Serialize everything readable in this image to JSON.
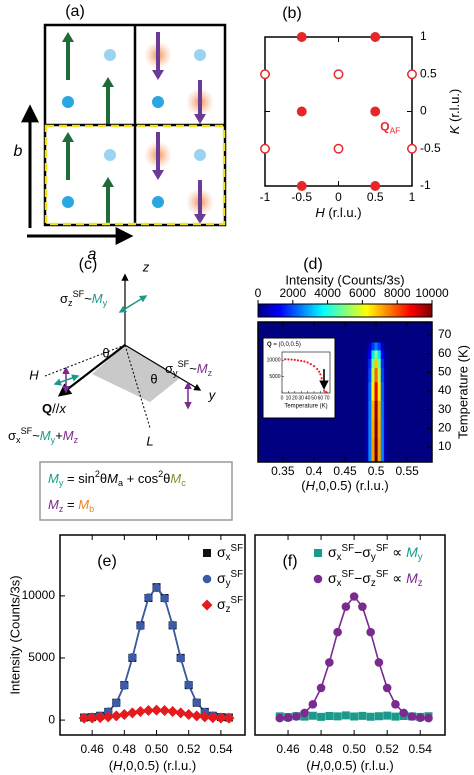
{
  "diagram_a": {
    "title": "(a)",
    "vertical_axis": "b",
    "horizontal_axis": "a"
  },
  "diagram_c": {
    "title": "(c)",
    "z": "z",
    "y": "y",
    "H": "H",
    "L": "L",
    "theta": [
      "θ",
      "θ"
    ],
    "Q": [
      {
        "b": "Q"
      },
      {
        "t": "//"
      },
      {
        "i": "x"
      }
    ],
    "sigma_z": [
      {
        "t": "σ"
      },
      {
        "sub": "z"
      },
      {
        "sup": "SF"
      },
      {
        "t": "~"
      },
      {
        "i": "M",
        "color": "#1a9a8a"
      },
      {
        "sub": "y",
        "color": "#1a9a8a"
      }
    ],
    "sigma_y": [
      {
        "t": "σ"
      },
      {
        "sub": "y"
      },
      {
        "sup": "SF"
      },
      {
        "t": "~"
      },
      {
        "i": "M",
        "color": "#7b2a8e"
      },
      {
        "sub": "z",
        "color": "#7b2a8e"
      }
    ],
    "sigma_x": [
      {
        "t": "σ"
      },
      {
        "sub": "x"
      },
      {
        "sup": "SF"
      },
      {
        "t": "~"
      },
      {
        "i": "M",
        "color": "#1a9a8a"
      },
      {
        "sub": "y",
        "color": "#1a9a8a"
      },
      {
        "t": "+"
      },
      {
        "i": "M",
        "color": "#7b2a8e"
      },
      {
        "sub": "z",
        "color": "#7b2a8e"
      }
    ],
    "formula_y": [
      {
        "i": "M",
        "color": "#1a9a8a"
      },
      {
        "sub": "y",
        "color": "#1a9a8a"
      },
      {
        "t": " = sin"
      },
      {
        "sup": "2"
      },
      {
        "t": "θ"
      },
      {
        "i": "M"
      },
      {
        "sub": "a"
      },
      {
        "t": " + cos"
      },
      {
        "sup": "2"
      },
      {
        "t": "θ"
      },
      {
        "i": "M",
        "color": "#8a8a2a"
      },
      {
        "sub": "c",
        "color": "#8a8a2a"
      }
    ],
    "formula_z": [
      {
        "i": "M",
        "color": "#7b2a8e"
      },
      {
        "sub": "z",
        "color": "#7b2a8e"
      },
      {
        "t": " = "
      },
      {
        "i": "M",
        "color": "#e8862a"
      },
      {
        "sub": "b",
        "color": "#e8862a"
      }
    ]
  },
  "chart_data": [
    {
      "type": "scatter",
      "title": "(b)",
      "xlabel": [
        {
          "i": "H"
        },
        {
          "t": " (r.l.u.)"
        }
      ],
      "ylabel": [
        {
          "i": "K"
        },
        {
          "t": " (r.l.u.)"
        }
      ],
      "xlim": [
        -1,
        1
      ],
      "ylim": [
        -1,
        1
      ],
      "xticks": [
        -1,
        -0.5,
        0,
        0.5,
        1
      ],
      "yticks": [
        -1,
        -0.5,
        0,
        0.5,
        1
      ],
      "annotation": [
        {
          "b": "Q",
          "color": "#e8262a"
        },
        {
          "sub": "AF",
          "color": "#e8262a"
        }
      ],
      "series": [
        {
          "color": "#e8262a",
          "fill": "filled",
          "x": [
            -0.5,
            0.5,
            -0.5,
            0.5,
            -0.5,
            0.5
          ],
          "values": [
            1,
            1,
            0,
            0,
            -1,
            -1
          ]
        },
        {
          "color": "#e8262a",
          "fill": "open",
          "x": [
            -1,
            0,
            1,
            -1,
            0,
            1
          ],
          "values": [
            0.5,
            0.5,
            0.5,
            -0.5,
            -0.5,
            -0.5
          ]
        }
      ]
    },
    {
      "type": "heatmap",
      "title": "(d)",
      "colormap": "jet",
      "xlabel": [
        {
          "t": "("
        },
        {
          "i": "H"
        },
        {
          "t": ",0,0.5) (r.l.u.)"
        }
      ],
      "ylabel": "Temperature (K)",
      "xlim": [
        0.31,
        0.59
      ],
      "ylim": [
        2,
        77
      ],
      "xticks": [
        0.35,
        0.4,
        0.45,
        0.5,
        0.55
      ],
      "yticks": [
        10,
        20,
        30,
        40,
        50,
        60,
        70
      ],
      "colorbar": {
        "label": "Intensity (Counts/3s)",
        "lim": [
          0,
          10000
        ],
        "ticks": [
          0,
          2000,
          4000,
          6000,
          8000,
          10000
        ]
      },
      "x": [
        0.485,
        0.49,
        0.495,
        0.5,
        0.505,
        0.51,
        0.515
      ],
      "y": [
        4,
        10,
        20,
        30,
        40,
        50,
        55,
        60,
        64
      ],
      "z": [
        [
          449,
          2550,
          7211,
          10200,
          7211,
          2550,
          449
        ],
        [
          449,
          2550,
          7211,
          10200,
          7211,
          2550,
          449
        ],
        [
          440,
          2500,
          7070,
          10000,
          7070,
          2500,
          440
        ],
        [
          431,
          2450,
          6929,
          9800,
          6929,
          2450,
          431
        ],
        [
          396,
          2250,
          6363,
          9000,
          6363,
          2250,
          396
        ],
        [
          343,
          1950,
          5515,
          7800,
          5515,
          1950,
          343
        ],
        [
          299,
          1700,
          4808,
          6800,
          4808,
          1700,
          299
        ],
        [
          220,
          1250,
          3535,
          5000,
          3535,
          1250,
          220
        ],
        [
          110,
          625,
          1768,
          2500,
          1768,
          625,
          110
        ]
      ],
      "inset": {
        "title": [
          {
            "b": "Q"
          },
          {
            "t": " = (0,0,0.5)"
          }
        ],
        "xlabel": "Temperature (K)",
        "color": "#e8262a",
        "xlim": [
          0,
          75
        ],
        "ylim": [
          0,
          12500
        ],
        "xticks": [
          0,
          10,
          20,
          30,
          40,
          50,
          60,
          70
        ],
        "yticks": [
          5000,
          10000
        ],
        "x": [
          5,
          10,
          15,
          20,
          25,
          30,
          35,
          40,
          45,
          50,
          55,
          58,
          60,
          62,
          64,
          65,
          66,
          68,
          70
        ],
        "values": [
          10300,
          10250,
          10200,
          10100,
          9950,
          9800,
          9600,
          9300,
          8800,
          8200,
          7300,
          6500,
          5700,
          4500,
          2800,
          1800,
          700,
          200,
          100
        ]
      }
    },
    {
      "type": "line",
      "title": "(e)",
      "legend": "upper right",
      "xlabel": [
        {
          "t": "("
        },
        {
          "i": "H"
        },
        {
          "t": ",0,0.5) (r.l.u.)"
        }
      ],
      "ylabel": "Intensity (Counts/3s)",
      "xlim": [
        0.44,
        0.555
      ],
      "ylim": [
        -1200,
        14900
      ],
      "xticks": [
        0.46,
        0.48,
        {
          "value": 0.5,
          "label": "0.50"
        },
        0.52,
        0.54
      ],
      "yticks": [
        0,
        5000,
        10000
      ],
      "x": [
        0.455,
        0.46,
        0.465,
        0.47,
        0.475,
        0.48,
        0.485,
        0.49,
        0.495,
        0.5,
        0.505,
        0.51,
        0.515,
        0.52,
        0.525,
        0.53,
        0.535,
        0.54,
        0.545
      ],
      "series": [
        {
          "name": [
            {
              "t": "σ"
            },
            {
              "sub": "x"
            },
            {
              "sup": "SF"
            }
          ],
          "color": "#111111",
          "marker": "square",
          "line": true,
          "values": [
            209,
            241,
            349,
            662,
            1397,
            2815,
            5009,
            7624,
            9829,
            10700,
            9829,
            7624,
            5009,
            2815,
            1397,
            662,
            349,
            241,
            209
          ]
        },
        {
          "name": [
            {
              "t": "σ"
            },
            {
              "sub": "y"
            },
            {
              "sup": "SF"
            }
          ],
          "color": "#3b5ba8",
          "marker": "circle",
          "line": true,
          "values": [
            200,
            250,
            340,
            680,
            1380,
            2790,
            5050,
            7580,
            9860,
            10650,
            9800,
            7650,
            4980,
            2840,
            1410,
            640,
            360,
            230,
            210
          ]
        },
        {
          "name": [
            {
              "t": "σ"
            },
            {
              "sub": "z"
            },
            {
              "sup": "SF"
            }
          ],
          "color": "#e41a1c",
          "marker": "diamond",
          "line": true,
          "values": [
            160,
            170,
            200,
            260,
            340,
            450,
            580,
            690,
            770,
            800,
            770,
            690,
            580,
            450,
            340,
            260,
            200,
            170,
            160
          ]
        }
      ]
    },
    {
      "type": "line",
      "title": "(f)",
      "legend": "upper center",
      "xlabel": [
        {
          "t": "("
        },
        {
          "i": "H"
        },
        {
          "t": ",0,0.5) (r.l.u.)"
        }
      ],
      "xlim": [
        0.44,
        0.555
      ],
      "ylim": [
        -1200,
        14900
      ],
      "xticks": [
        0.46,
        0.48,
        {
          "value": 0.5,
          "label": "0.50"
        },
        0.52,
        0.54
      ],
      "x": [
        0.455,
        0.46,
        0.465,
        0.47,
        0.475,
        0.48,
        0.485,
        0.49,
        0.495,
        0.5,
        0.505,
        0.51,
        0.515,
        0.52,
        0.525,
        0.53,
        0.535,
        0.54,
        0.545
      ],
      "series": [
        {
          "name": [
            {
              "t": "σ"
            },
            {
              "sub": "x"
            },
            {
              "sup": "SF"
            },
            {
              "t": "−σ"
            },
            {
              "sub": "y"
            },
            {
              "sup": "SF"
            },
            {
              "t": " ∝ "
            },
            {
              "i": "M",
              "color": "#1a9a8a"
            },
            {
              "sub": "y",
              "color": "#1a9a8a"
            }
          ],
          "color": "#1a9a8a",
          "marker": "square",
          "line": false,
          "values": [
            300,
            250,
            320,
            280,
            350,
            260,
            330,
            300,
            380,
            290,
            340,
            270,
            310,
            360,
            280,
            330,
            300,
            260,
            310
          ]
        },
        {
          "name": [
            {
              "t": "σ"
            },
            {
              "sub": "x"
            },
            {
              "sup": "SF"
            },
            {
              "t": "−σ"
            },
            {
              "sub": "z"
            },
            {
              "sup": "SF"
            },
            {
              "t": " ∝ "
            },
            {
              "i": "M",
              "color": "#7b2a8e"
            },
            {
              "sub": "z",
              "color": "#7b2a8e"
            }
          ],
          "color": "#7b2a8e",
          "marker": "circle",
          "line": true,
          "values": [
            160,
            190,
            290,
            580,
            1270,
            2590,
            4640,
            7080,
            9130,
            9950,
            9130,
            7080,
            4640,
            2590,
            1270,
            580,
            290,
            190,
            160
          ]
        }
      ]
    }
  ]
}
